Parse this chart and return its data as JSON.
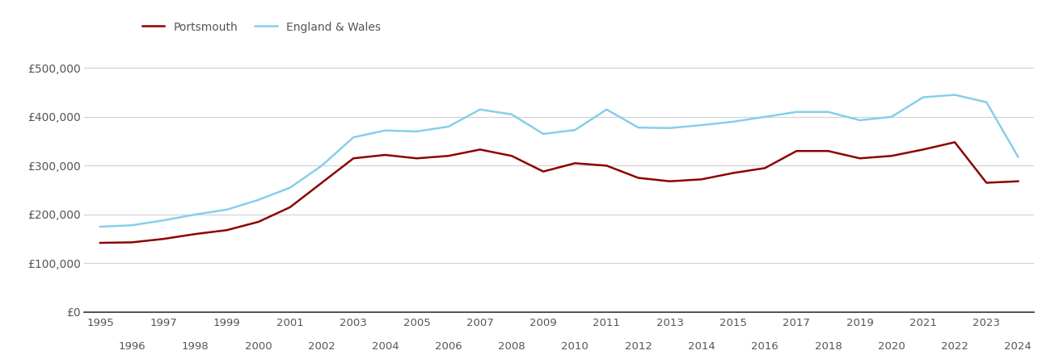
{
  "portsmouth": {
    "years": [
      1995,
      1996,
      1997,
      1998,
      1999,
      2000,
      2001,
      2002,
      2003,
      2004,
      2005,
      2006,
      2007,
      2008,
      2009,
      2010,
      2011,
      2012,
      2013,
      2014,
      2015,
      2016,
      2017,
      2018,
      2019,
      2020,
      2021,
      2022,
      2023,
      2024
    ],
    "values": [
      142000,
      143000,
      150000,
      160000,
      168000,
      185000,
      215000,
      265000,
      315000,
      322000,
      315000,
      320000,
      333000,
      320000,
      288000,
      305000,
      300000,
      275000,
      268000,
      272000,
      285000,
      295000,
      330000,
      330000,
      315000,
      320000,
      333000,
      348000,
      265000,
      268000
    ]
  },
  "england_wales": {
    "years": [
      1995,
      1996,
      1997,
      1998,
      1999,
      2000,
      2001,
      2002,
      2003,
      2004,
      2005,
      2006,
      2007,
      2008,
      2009,
      2010,
      2011,
      2012,
      2013,
      2014,
      2015,
      2016,
      2017,
      2018,
      2019,
      2020,
      2021,
      2022,
      2023,
      2024
    ],
    "values": [
      175000,
      178000,
      188000,
      200000,
      210000,
      230000,
      255000,
      300000,
      358000,
      372000,
      370000,
      380000,
      415000,
      405000,
      365000,
      373000,
      415000,
      378000,
      377000,
      383000,
      390000,
      400000,
      410000,
      410000,
      393000,
      400000,
      440000,
      445000,
      430000,
      318000
    ]
  },
  "portsmouth_color": "#8B0000",
  "england_wales_color": "#87CEEB",
  "background_color": "#ffffff",
  "grid_color": "#d0d0d0",
  "ylim": [
    0,
    550000
  ],
  "yticks": [
    0,
    100000,
    200000,
    300000,
    400000,
    500000
  ],
  "ytick_labels": [
    "£0",
    "£100,000",
    "£200,000",
    "£300,000",
    "£400,000",
    "£500,000"
  ],
  "odd_years": [
    1995,
    1997,
    1999,
    2001,
    2003,
    2005,
    2007,
    2009,
    2011,
    2013,
    2015,
    2017,
    2019,
    2021,
    2023
  ],
  "even_years": [
    1996,
    1998,
    2000,
    2002,
    2004,
    2006,
    2008,
    2010,
    2012,
    2014,
    2016,
    2018,
    2020,
    2022,
    2024
  ],
  "legend_portsmouth": "Portsmouth",
  "legend_ew": "England & Wales",
  "line_width": 1.8
}
